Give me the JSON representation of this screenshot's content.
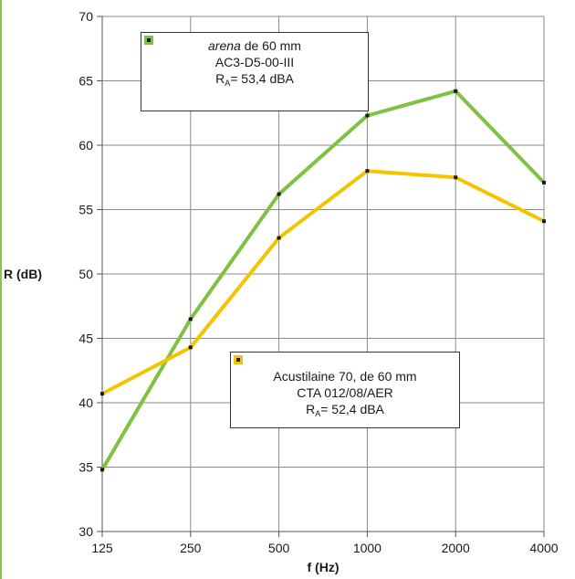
{
  "chart_data": {
    "type": "line",
    "categories": [
      "125",
      "250",
      "500",
      "1000",
      "2000",
      "4000"
    ],
    "xlabel": "f (Hz)",
    "ylabel": "R (dB)",
    "ylim": [
      30,
      70
    ],
    "yticks": [
      "30",
      "35",
      "40",
      "45",
      "50",
      "55",
      "60",
      "65",
      "70"
    ],
    "grid": true,
    "series": [
      {
        "name_italic": "arena",
        "name_rest": " de 60 mm",
        "line2": "AC3-D5-00-III",
        "ra_prefix": "R",
        "ra_sub": "A",
        "ra_value": "= 53,4 dBA",
        "color": "#7dc242",
        "values": [
          34.8,
          46.5,
          56.2,
          62.3,
          64.2,
          57.1
        ]
      },
      {
        "name_italic": "",
        "name_rest": "Acustilaine 70, de 60 mm",
        "line2": "CTA 012/08/AER",
        "ra_prefix": "R",
        "ra_sub": "A",
        "ra_value": "= 52,4 dBA",
        "color": "#f2c500",
        "values": [
          40.7,
          44.3,
          52.8,
          58.0,
          57.5,
          54.1
        ]
      }
    ]
  }
}
